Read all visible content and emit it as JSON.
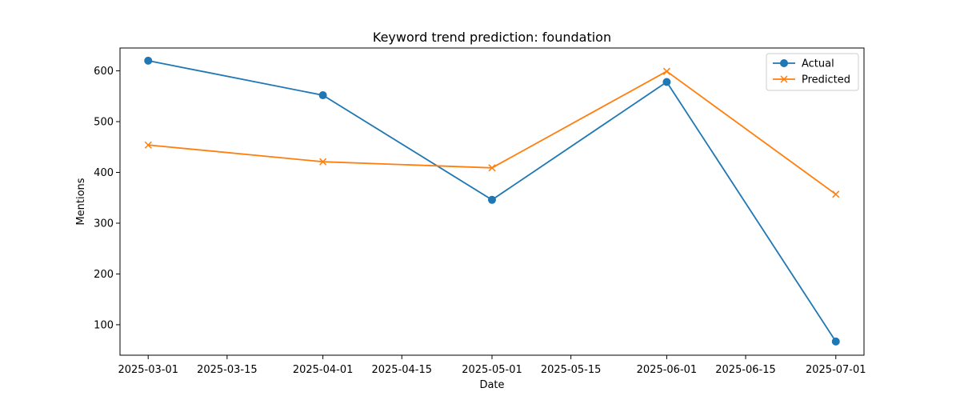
{
  "chart_data": {
    "type": "line",
    "title": "Keyword trend prediction: foundation",
    "xlabel": "Date",
    "ylabel": "Mentions",
    "x": [
      "2025-03-01",
      "2025-04-01",
      "2025-05-01",
      "2025-06-01",
      "2025-07-01"
    ],
    "x_ticks": [
      "2025-03-01",
      "2025-03-15",
      "2025-04-01",
      "2025-04-15",
      "2025-05-01",
      "2025-05-15",
      "2025-06-01",
      "2025-06-15",
      "2025-07-01"
    ],
    "y_ticks": [
      100,
      200,
      300,
      400,
      500,
      600
    ],
    "xlim": [
      "2025-02-24",
      "2025-07-06"
    ],
    "ylim": [
      40,
      645
    ],
    "grid": false,
    "legend": "top-right",
    "series": [
      {
        "name": "Actual",
        "values": [
          620,
          552,
          346,
          578,
          67
        ],
        "color": "#1f77b4",
        "marker": "circle"
      },
      {
        "name": "Predicted",
        "values": [
          454,
          421,
          409,
          599,
          357
        ],
        "color": "#ff7f0e",
        "marker": "x"
      }
    ]
  }
}
